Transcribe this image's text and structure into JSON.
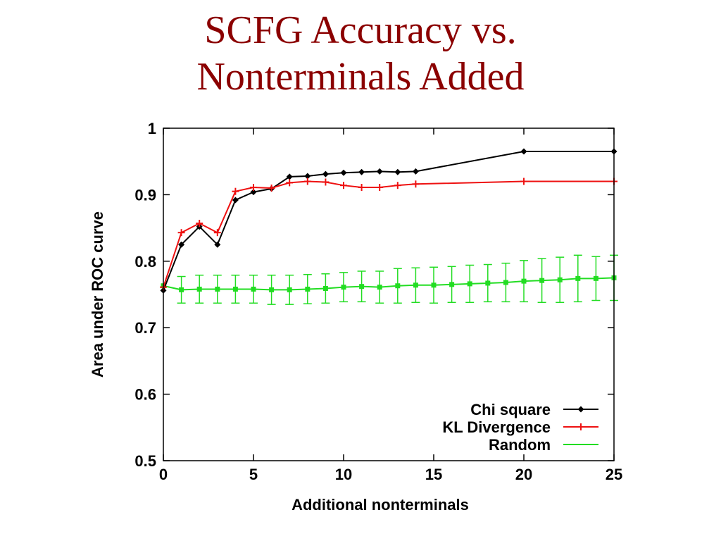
{
  "slide": {
    "title_line1": "SCFG Accuracy vs.",
    "title_line2": "Nonterminals Added"
  },
  "chart_data": {
    "type": "line",
    "xlabel": "Additional nonterminals",
    "ylabel": "Area under ROC curve",
    "xlim": [
      0,
      25
    ],
    "ylim": [
      0.5,
      1
    ],
    "xticks": [
      0,
      5,
      10,
      15,
      20,
      25
    ],
    "xtick_labels": [
      "0",
      "5",
      "10",
      "15",
      "20",
      "25"
    ],
    "yticks": [
      0.5,
      0.6,
      0.7,
      0.8,
      0.9,
      1
    ],
    "ytick_labels": [
      "0.5",
      "0.6",
      "0.7",
      "0.8",
      "0.9",
      "1"
    ],
    "grid": false,
    "legend_position": "bottom-right",
    "series": [
      {
        "name": "Chi square",
        "color": "#000000",
        "marker": "diamond",
        "x": [
          0,
          1,
          2,
          3,
          4,
          5,
          6,
          7,
          8,
          9,
          10,
          11,
          12,
          13,
          14,
          20,
          25
        ],
        "y": [
          0.756,
          0.825,
          0.852,
          0.825,
          0.892,
          0.904,
          0.909,
          0.927,
          0.928,
          0.931,
          0.933,
          0.934,
          0.935,
          0.934,
          0.935,
          0.965,
          0.965
        ]
      },
      {
        "name": "KL Divergence",
        "color": "#ee1111",
        "marker": "plus",
        "x": [
          0,
          1,
          2,
          3,
          4,
          5,
          6,
          7,
          8,
          9,
          10,
          11,
          12,
          13,
          14,
          20,
          25
        ],
        "y": [
          0.761,
          0.843,
          0.857,
          0.843,
          0.905,
          0.911,
          0.91,
          0.918,
          0.92,
          0.919,
          0.914,
          0.911,
          0.911,
          0.914,
          0.916,
          0.92,
          0.92
        ]
      },
      {
        "name": "Random",
        "color": "#22dd22",
        "marker": "square",
        "x": [
          0,
          1,
          2,
          3,
          4,
          5,
          6,
          7,
          8,
          9,
          10,
          11,
          12,
          13,
          14,
          15,
          16,
          17,
          18,
          19,
          20,
          21,
          22,
          23,
          24,
          25
        ],
        "y": [
          0.763,
          0.757,
          0.758,
          0.758,
          0.758,
          0.758,
          0.757,
          0.757,
          0.758,
          0.759,
          0.761,
          0.762,
          0.761,
          0.763,
          0.764,
          0.764,
          0.765,
          0.766,
          0.767,
          0.768,
          0.77,
          0.771,
          0.772,
          0.774,
          0.774,
          0.775
        ],
        "err": [
          0,
          0.02,
          0.021,
          0.021,
          0.021,
          0.021,
          0.022,
          0.022,
          0.022,
          0.022,
          0.022,
          0.023,
          0.024,
          0.026,
          0.026,
          0.027,
          0.027,
          0.028,
          0.028,
          0.029,
          0.031,
          0.033,
          0.034,
          0.035,
          0.033,
          0.034
        ]
      }
    ]
  }
}
